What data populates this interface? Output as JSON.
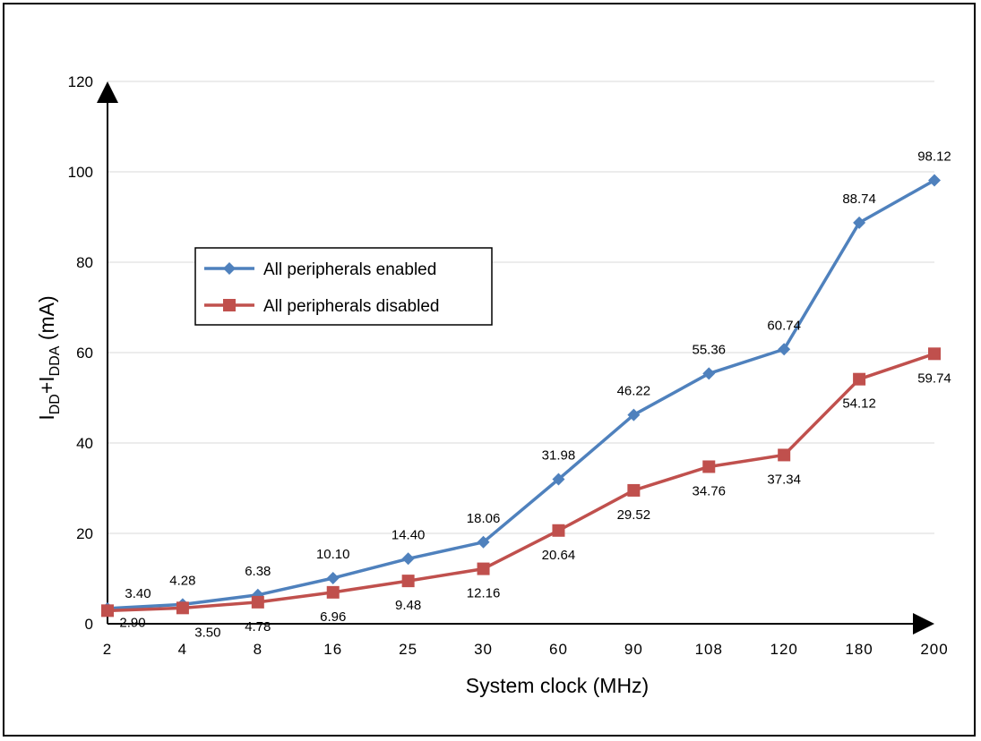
{
  "chart_data": {
    "type": "line",
    "categories": [
      "2",
      "4",
      "8",
      "16",
      "25",
      "30",
      "60",
      "90",
      "108",
      "120",
      "180",
      "200"
    ],
    "series": [
      {
        "name": "All peripherals enabled",
        "color": "#4F81BD",
        "marker": "diamond",
        "values": [
          3.4,
          4.28,
          6.38,
          10.1,
          14.4,
          18.06,
          31.98,
          46.22,
          55.36,
          60.74,
          88.74,
          98.12
        ],
        "labels": [
          "3.40",
          "4.28",
          "6.38",
          "10.10",
          "14.40",
          "18.06",
          "31.98",
          "46.22",
          "55.36",
          "60.74",
          "88.74",
          "98.12"
        ]
      },
      {
        "name": "All peripherals disabled",
        "color": "#C0504D",
        "marker": "square",
        "values": [
          2.9,
          3.5,
          4.78,
          6.96,
          9.48,
          12.16,
          20.64,
          29.52,
          34.76,
          37.34,
          54.12,
          59.74
        ],
        "labels": [
          "2.90",
          "3.50",
          "4.78",
          "6.96",
          "9.48",
          "12.16",
          "20.64",
          "29.52",
          "34.76",
          "37.34",
          "54.12",
          "59.74"
        ]
      }
    ],
    "xlabel": "System clock (MHz)",
    "ylabel": {
      "main": "I",
      "sub1": "DD",
      "plus": "+I",
      "sub2": "DDA",
      "unit": " (mA)"
    },
    "ylim": [
      0,
      120
    ],
    "yticks": [
      "0",
      "20",
      "40",
      "60",
      "80",
      "100",
      "120"
    ],
    "grid": true,
    "legend_position": "upper-left"
  }
}
